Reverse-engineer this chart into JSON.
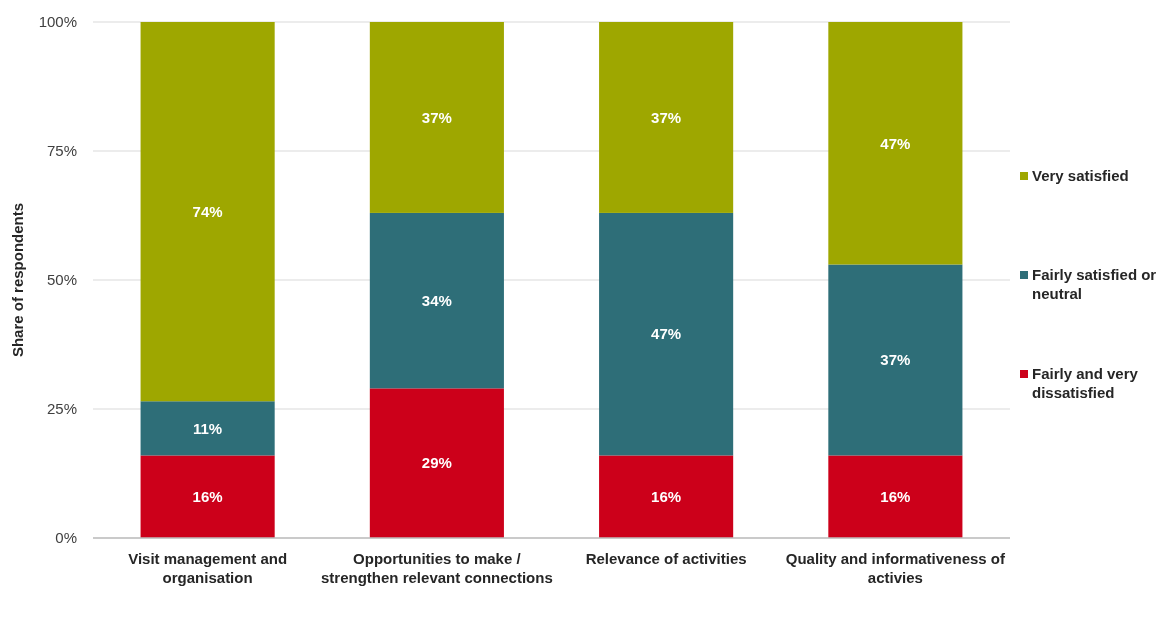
{
  "chart_data": {
    "type": "bar",
    "stacked": true,
    "ylabel": "Share of respondents",
    "categories": [
      "Visit management and organisation",
      "Opportunities to make / strengthen relevant connections",
      "Relevance of activities",
      "Quality and informativeness of activies"
    ],
    "series": [
      {
        "name": "Fairly and very dissatisfied",
        "color": "#cc001a",
        "values": [
          16,
          29,
          16,
          16
        ],
        "value_labels": [
          "16%",
          "29%",
          "16%",
          "16%"
        ]
      },
      {
        "name": "Fairly satisfied or neutral",
        "color": "#2e6e78",
        "values": [
          10.5,
          34,
          47,
          37
        ],
        "value_labels": [
          "11%",
          "34%",
          "47%",
          "37%"
        ]
      },
      {
        "name": "Very satisfied",
        "color": "#9ea700",
        "values": [
          73.5,
          37,
          37,
          47
        ],
        "value_labels": [
          "74%",
          "37%",
          "37%",
          "47%"
        ]
      }
    ],
    "ylim": [
      0,
      100
    ],
    "yticks": [
      {
        "value": 0,
        "label": "0%"
      },
      {
        "value": 25,
        "label": "25%"
      },
      {
        "value": 50,
        "label": "50%"
      },
      {
        "value": 75,
        "label": "75%"
      },
      {
        "value": 100,
        "label": "100%"
      }
    ],
    "grid": "y",
    "legend": "right"
  }
}
